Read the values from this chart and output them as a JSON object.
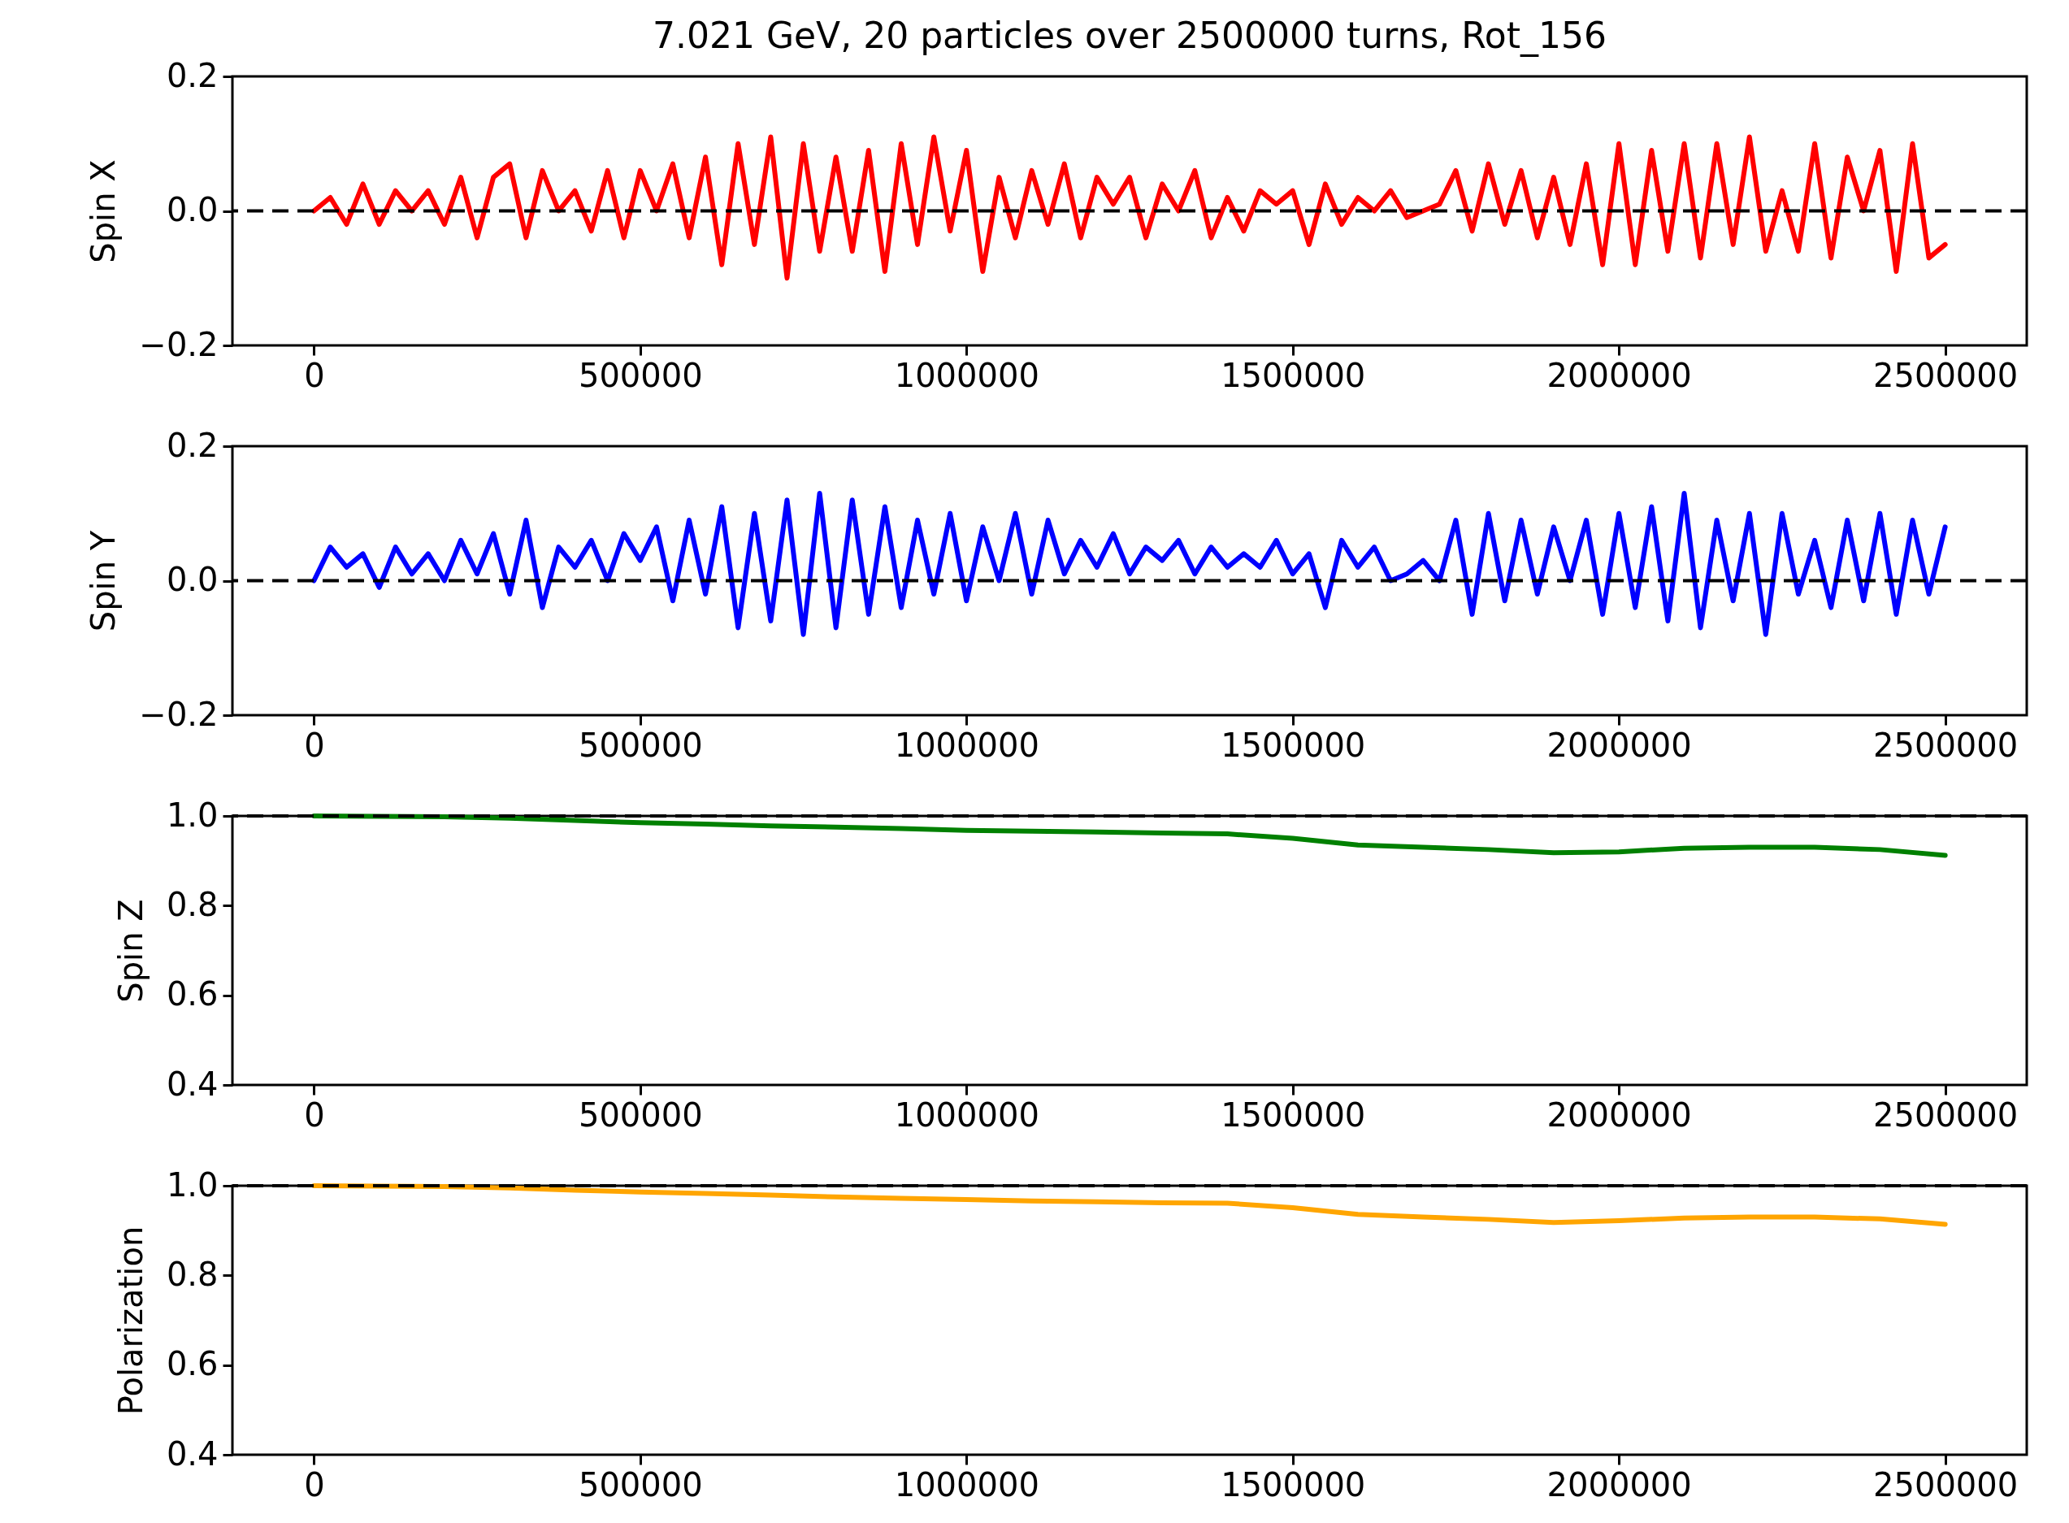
{
  "chart_data": [
    {
      "type": "line",
      "title": "7.021 GeV, 20 particles over 2500000 turns, Rot_156",
      "ylabel": "Spin X",
      "x": [
        0,
        25000,
        50000,
        75000,
        100000,
        125000,
        150000,
        175000,
        200000,
        225000,
        250000,
        275000,
        300000,
        325000,
        350000,
        375000,
        400000,
        425000,
        450000,
        475000,
        500000,
        525000,
        550000,
        575000,
        600000,
        625000,
        650000,
        675000,
        700000,
        725000,
        750000,
        775000,
        800000,
        825000,
        850000,
        875000,
        900000,
        925000,
        950000,
        975000,
        1000000,
        1025000,
        1050000,
        1075000,
        1100000,
        1125000,
        1150000,
        1175000,
        1200000,
        1225000,
        1250000,
        1275000,
        1300000,
        1325000,
        1350000,
        1375000,
        1400000,
        1425000,
        1450000,
        1475000,
        1500000,
        1525000,
        1550000,
        1575000,
        1600000,
        1625000,
        1650000,
        1675000,
        1700000,
        1725000,
        1750000,
        1775000,
        1800000,
        1825000,
        1850000,
        1875000,
        1900000,
        1925000,
        1950000,
        1975000,
        2000000,
        2025000,
        2050000,
        2075000,
        2100000,
        2125000,
        2150000,
        2175000,
        2200000,
        2225000,
        2250000,
        2275000,
        2300000,
        2325000,
        2350000,
        2375000,
        2400000,
        2425000,
        2450000,
        2475000,
        2500000
      ],
      "series": [
        {
          "color": "#ff0000",
          "values": [
            0,
            0.02,
            -0.02,
            0.04,
            -0.02,
            0.03,
            0.0,
            0.03,
            -0.02,
            0.05,
            -0.04,
            0.05,
            0.07,
            -0.04,
            0.06,
            0.0,
            0.03,
            -0.03,
            0.06,
            -0.04,
            0.06,
            0.0,
            0.07,
            -0.04,
            0.08,
            -0.08,
            0.1,
            -0.05,
            0.11,
            -0.1,
            0.1,
            -0.06,
            0.08,
            -0.06,
            0.09,
            -0.09,
            0.1,
            -0.05,
            0.11,
            -0.03,
            0.09,
            -0.09,
            0.05,
            -0.04,
            0.06,
            -0.02,
            0.07,
            -0.04,
            0.05,
            0.01,
            0.05,
            -0.04,
            0.04,
            0.0,
            0.06,
            -0.04,
            0.02,
            -0.03,
            0.03,
            0.01,
            0.03,
            -0.05,
            0.04,
            -0.02,
            0.02,
            0.0,
            0.03,
            -0.01,
            0.0,
            0.01,
            0.06,
            -0.03,
            0.07,
            -0.02,
            0.06,
            -0.04,
            0.05,
            -0.05,
            0.07,
            -0.08,
            0.1,
            -0.08,
            0.09,
            -0.06,
            0.1,
            -0.07,
            0.1,
            -0.05,
            0.11,
            -0.06,
            0.03,
            -0.06,
            0.1,
            -0.07,
            0.08,
            0.0,
            0.09,
            -0.09,
            0.1,
            -0.07,
            -0.05
          ]
        }
      ],
      "xlim": [
        -125000,
        2625000
      ],
      "xticks": [
        0,
        500000,
        1000000,
        1500000,
        2000000,
        2500000
      ],
      "ylim": [
        -0.2,
        0.2
      ],
      "yticks": [
        {
          "value": -0.2,
          "label": "−0.2"
        },
        {
          "value": 0,
          "label": "0.0"
        },
        0.2
      ],
      "ref_lines": [
        {
          "axis": "y",
          "value": 0,
          "color": "#000000",
          "line_style": "dashed"
        }
      ]
    },
    {
      "type": "line",
      "ylabel": "Spin Y",
      "x": [
        0,
        25000,
        50000,
        75000,
        100000,
        125000,
        150000,
        175000,
        200000,
        225000,
        250000,
        275000,
        300000,
        325000,
        350000,
        375000,
        400000,
        425000,
        450000,
        475000,
        500000,
        525000,
        550000,
        575000,
        600000,
        625000,
        650000,
        675000,
        700000,
        725000,
        750000,
        775000,
        800000,
        825000,
        850000,
        875000,
        900000,
        925000,
        950000,
        975000,
        1000000,
        1025000,
        1050000,
        1075000,
        1100000,
        1125000,
        1150000,
        1175000,
        1200000,
        1225000,
        1250000,
        1275000,
        1300000,
        1325000,
        1350000,
        1375000,
        1400000,
        1425000,
        1450000,
        1475000,
        1500000,
        1525000,
        1550000,
        1575000,
        1600000,
        1625000,
        1650000,
        1675000,
        1700000,
        1725000,
        1750000,
        1775000,
        1800000,
        1825000,
        1850000,
        1875000,
        1900000,
        1925000,
        1950000,
        1975000,
        2000000,
        2025000,
        2050000,
        2075000,
        2100000,
        2125000,
        2150000,
        2175000,
        2200000,
        2225000,
        2250000,
        2275000,
        2300000,
        2325000,
        2350000,
        2375000,
        2400000,
        2425000,
        2450000,
        2475000,
        2500000
      ],
      "series": [
        {
          "color": "#0000ff",
          "values": [
            0,
            0.05,
            0.02,
            0.04,
            -0.01,
            0.05,
            0.01,
            0.04,
            0.0,
            0.06,
            0.01,
            0.07,
            -0.02,
            0.09,
            -0.04,
            0.05,
            0.02,
            0.06,
            0.0,
            0.07,
            0.03,
            0.08,
            -0.03,
            0.09,
            -0.02,
            0.11,
            -0.07,
            0.1,
            -0.06,
            0.12,
            -0.08,
            0.13,
            -0.07,
            0.12,
            -0.05,
            0.11,
            -0.04,
            0.09,
            -0.02,
            0.1,
            -0.03,
            0.08,
            0.0,
            0.1,
            -0.02,
            0.09,
            0.01,
            0.06,
            0.02,
            0.07,
            0.01,
            0.05,
            0.03,
            0.06,
            0.01,
            0.05,
            0.02,
            0.04,
            0.02,
            0.06,
            0.01,
            0.04,
            -0.04,
            0.06,
            0.02,
            0.05,
            0.0,
            0.01,
            0.03,
            0.0,
            0.09,
            -0.05,
            0.1,
            -0.03,
            0.09,
            -0.02,
            0.08,
            0.0,
            0.09,
            -0.05,
            0.1,
            -0.04,
            0.11,
            -0.06,
            0.13,
            -0.07,
            0.09,
            -0.03,
            0.1,
            -0.08,
            0.1,
            -0.02,
            0.06,
            -0.04,
            0.09,
            -0.03,
            0.1,
            -0.05,
            0.09,
            -0.02,
            0.08
          ]
        }
      ],
      "xlim": [
        -125000,
        2625000
      ],
      "xticks": [
        0,
        500000,
        1000000,
        1500000,
        2000000,
        2500000
      ],
      "ylim": [
        -0.2,
        0.2
      ],
      "yticks": [
        {
          "value": -0.2,
          "label": "−0.2"
        },
        {
          "value": 0,
          "label": "0.0"
        },
        0.2
      ],
      "ref_lines": [
        {
          "axis": "y",
          "value": 0,
          "color": "#000000",
          "line_style": "dashed"
        }
      ]
    },
    {
      "type": "line",
      "ylabel": "Spin Z",
      "x": [
        0,
        100000,
        200000,
        300000,
        400000,
        500000,
        600000,
        700000,
        800000,
        900000,
        1000000,
        1100000,
        1200000,
        1300000,
        1400000,
        1500000,
        1600000,
        1700000,
        1800000,
        1900000,
        2000000,
        2100000,
        2200000,
        2300000,
        2400000,
        2500000
      ],
      "series": [
        {
          "color": "#008000",
          "values": [
            1.0,
            0.999,
            0.998,
            0.995,
            0.99,
            0.985,
            0.982,
            0.978,
            0.975,
            0.972,
            0.968,
            0.966,
            0.964,
            0.962,
            0.96,
            0.95,
            0.935,
            0.93,
            0.925,
            0.918,
            0.92,
            0.928,
            0.93,
            0.93,
            0.925,
            0.912
          ]
        }
      ],
      "xlim": [
        -125000,
        2625000
      ],
      "xticks": [
        0,
        500000,
        1000000,
        1500000,
        2000000,
        2500000
      ],
      "ylim": [
        0.4,
        1.0
      ],
      "yticks": [
        0.4,
        0.6,
        0.8,
        {
          "value": 1,
          "label": "1.0"
        }
      ],
      "ref_lines": [
        {
          "axis": "y",
          "value": 1,
          "color": "#000000",
          "line_style": "dashed"
        }
      ]
    },
    {
      "type": "line",
      "ylabel": "Polarization",
      "x": [
        0,
        100000,
        200000,
        300000,
        400000,
        500000,
        600000,
        700000,
        800000,
        900000,
        1000000,
        1100000,
        1200000,
        1300000,
        1400000,
        1500000,
        1600000,
        1700000,
        1800000,
        1900000,
        2000000,
        2100000,
        2200000,
        2300000,
        2400000,
        2500000
      ],
      "series": [
        {
          "color": "#ffa500",
          "values": [
            1.0,
            0.999,
            0.998,
            0.995,
            0.99,
            0.986,
            0.983,
            0.979,
            0.975,
            0.972,
            0.969,
            0.966,
            0.964,
            0.962,
            0.961,
            0.951,
            0.936,
            0.93,
            0.925,
            0.918,
            0.922,
            0.928,
            0.93,
            0.93,
            0.926,
            0.914
          ]
        }
      ],
      "xlim": [
        -125000,
        2625000
      ],
      "xticks": [
        0,
        500000,
        1000000,
        1500000,
        2000000,
        2500000
      ],
      "ylim": [
        0.4,
        1.0
      ],
      "yticks": [
        0.4,
        0.6,
        0.8,
        {
          "value": 1,
          "label": "1.0"
        }
      ],
      "ref_lines": [
        {
          "axis": "y",
          "value": 1,
          "color": "#000000",
          "line_style": "dashed"
        }
      ]
    }
  ]
}
